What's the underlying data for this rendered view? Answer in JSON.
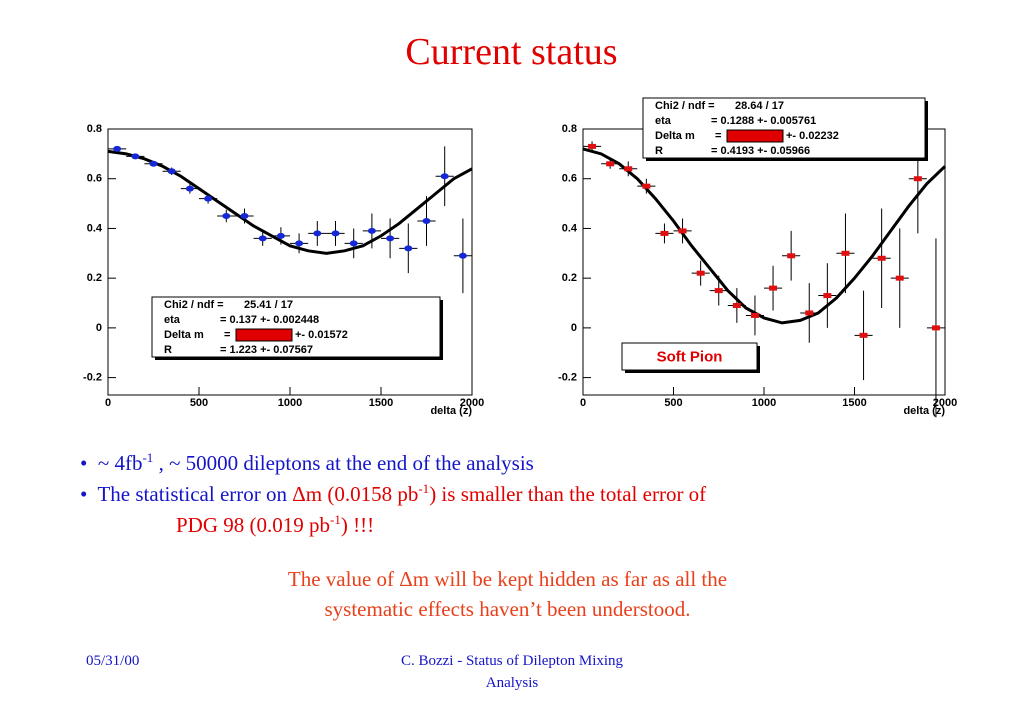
{
  "header": {
    "title": "Current status"
  },
  "chart_data": [
    {
      "type": "scatter",
      "xlabel": "delta (z)",
      "marker": "circle",
      "color": "#1428d8",
      "xlim": [
        0,
        2000
      ],
      "xticks": [
        0,
        500,
        1000,
        1500,
        2000
      ],
      "ylim": [
        -0.27,
        0.8
      ],
      "yticks": [
        -0.2,
        0,
        0.2,
        0.4,
        0.6,
        0.8
      ],
      "x": [
        50,
        150,
        250,
        350,
        450,
        550,
        650,
        750,
        850,
        950,
        1050,
        1150,
        1250,
        1350,
        1450,
        1550,
        1650,
        1750,
        1850,
        1950
      ],
      "values": [
        0.72,
        0.69,
        0.66,
        0.63,
        0.56,
        0.52,
        0.45,
        0.45,
        0.36,
        0.37,
        0.34,
        0.38,
        0.38,
        0.34,
        0.39,
        0.36,
        0.32,
        0.43,
        0.61,
        0.29
      ],
      "errors": [
        0.01,
        0.01,
        0.01,
        0.015,
        0.02,
        0.02,
        0.025,
        0.03,
        0.03,
        0.035,
        0.04,
        0.05,
        0.05,
        0.06,
        0.07,
        0.08,
        0.1,
        0.1,
        0.12,
        0.15
      ],
      "fit": {
        "x": [
          0,
          100,
          200,
          300,
          400,
          500,
          600,
          700,
          800,
          900,
          1000,
          1100,
          1200,
          1300,
          1400,
          1500,
          1600,
          1700,
          1800,
          1900,
          2000
        ],
        "values": [
          0.71,
          0.7,
          0.68,
          0.65,
          0.61,
          0.56,
          0.51,
          0.46,
          0.41,
          0.37,
          0.33,
          0.31,
          0.3,
          0.31,
          0.33,
          0.37,
          0.42,
          0.48,
          0.54,
          0.6,
          0.64
        ]
      },
      "stats": [
        [
          "Chi2 / ndf =",
          "25.41 / 17"
        ],
        [
          "eta",
          "= 0.137 +- 0.002448"
        ],
        [
          "Delta m",
          "=",
          "+- 0.01572"
        ],
        [
          "R",
          "= 1.223 +- 0.07567"
        ]
      ]
    },
    {
      "type": "scatter",
      "xlabel": "delta (z)",
      "marker": "square",
      "color": "#e01010",
      "xlim": [
        0,
        2000
      ],
      "xticks": [
        0,
        500,
        1000,
        1500,
        2000
      ],
      "ylim": [
        -0.27,
        0.8
      ],
      "yticks": [
        -0.2,
        0,
        0.2,
        0.4,
        0.6,
        0.8
      ],
      "x": [
        50,
        150,
        250,
        350,
        450,
        550,
        650,
        750,
        850,
        950,
        1050,
        1150,
        1250,
        1350,
        1450,
        1550,
        1650,
        1750,
        1850,
        1950
      ],
      "values": [
        0.73,
        0.66,
        0.64,
        0.57,
        0.38,
        0.39,
        0.22,
        0.15,
        0.09,
        0.05,
        0.16,
        0.29,
        0.06,
        0.13,
        0.3,
        -0.03,
        0.28,
        0.2,
        0.6,
        0
      ],
      "errors": [
        0.02,
        0.02,
        0.03,
        0.03,
        0.04,
        0.05,
        0.05,
        0.06,
        0.07,
        0.08,
        0.09,
        0.1,
        0.12,
        0.13,
        0.16,
        0.18,
        0.2,
        0.2,
        0.22,
        0.36
      ],
      "fit": {
        "x": [
          0,
          100,
          200,
          300,
          400,
          500,
          600,
          700,
          800,
          900,
          1000,
          1100,
          1200,
          1300,
          1400,
          1500,
          1600,
          1700,
          1800,
          1900,
          2000
        ],
        "values": [
          0.72,
          0.7,
          0.66,
          0.6,
          0.52,
          0.43,
          0.33,
          0.24,
          0.15,
          0.08,
          0.04,
          0.02,
          0.03,
          0.06,
          0.12,
          0.2,
          0.29,
          0.39,
          0.49,
          0.58,
          0.65
        ]
      },
      "stats": [
        [
          "Chi2 / ndf =",
          "28.64 / 17"
        ],
        [
          "eta",
          "= 0.1288 +- 0.005761"
        ],
        [
          "Delta m",
          "=",
          "+- 0.02232"
        ],
        [
          "R",
          "= 0.4193 +- 0.05966"
        ]
      ],
      "annotation": "Soft Pion"
    }
  ],
  "bullets": [
    [
      "~ 4fb",
      "-1",
      " , ~ 50000 dileptons at the end of the analysis"
    ],
    [
      "The statistical error on ",
      "Δm (0.0158 pb",
      "-1",
      ") is smaller than the total error of"
    ],
    [
      "PDG 98 (0.019 pb",
      "-1",
      ") !!!"
    ]
  ],
  "note": [
    "The value of Δm will be kept hidden as far as all the",
    "systematic effects haven’t been understood."
  ],
  "footer": {
    "date": "05/31/00",
    "author": [
      "C. Bozzi - Status of Dilepton Mixing",
      "Analysis"
    ]
  }
}
